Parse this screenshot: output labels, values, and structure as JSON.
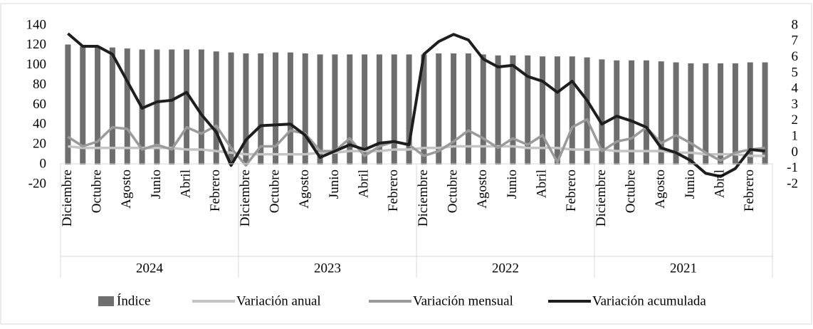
{
  "chart_data": {
    "type": "bar-line",
    "categories": [
      "Diciembre",
      null,
      "Octubre",
      null,
      "Agosto",
      null,
      "Junio",
      null,
      "Abril",
      null,
      "Febrero",
      null,
      "Diciembre",
      null,
      "Octubre",
      null,
      "Agosto",
      null,
      "Junio",
      null,
      "Abril",
      null,
      "Febrero",
      null,
      "Diciembre",
      null,
      "Octubre",
      null,
      "Agosto",
      null,
      "Junio",
      null,
      "Abril",
      null,
      "Febrero",
      null,
      "Diciembre",
      null,
      "Octubre",
      null,
      "Agosto",
      null,
      "Junio",
      null,
      "Abril",
      null,
      "Febrero",
      null
    ],
    "groups": [
      "2024",
      "2023",
      "2022",
      "2021"
    ],
    "series": [
      {
        "name": "Índice",
        "color": "#6e6e6e",
        "kind": "bar",
        "values": [
          121,
          119,
          119,
          118,
          117,
          116,
          116,
          116,
          116,
          116,
          114,
          113,
          112,
          112,
          113,
          113,
          112,
          111,
          111,
          111,
          111,
          111,
          111,
          111,
          111,
          112,
          112,
          112,
          111,
          110,
          110,
          110,
          109,
          109,
          109,
          108,
          106,
          105,
          105,
          105,
          104,
          103,
          102,
          102,
          102,
          102,
          103,
          103
        ]
      },
      {
        "name": "Variación anual",
        "color": "#c4c4c4",
        "kind": "line",
        "axis": "y2",
        "values": [
          0.4,
          0.3,
          0.3,
          0.3,
          0.3,
          0.3,
          0.3,
          0.3,
          0.2,
          0.2,
          0.1,
          0.0,
          -0.1,
          -0.1,
          -0.1,
          -0.1,
          -0.1,
          0.0,
          0.0,
          0.1,
          0.1,
          0.1,
          0.2,
          0.2,
          0.3,
          0.3,
          0.4,
          0.4,
          0.4,
          0.4,
          0.4,
          0.3,
          0.3,
          0.3,
          0.2,
          0.2,
          0.2,
          0.1,
          0.1,
          0.1,
          0.1,
          0.0,
          0.0,
          -0.1,
          -0.1,
          -0.1,
          -0.2,
          -0.2
        ]
      },
      {
        "name": "Variación mensual",
        "color": "#9a9a9a",
        "kind": "line",
        "axis": "y2",
        "values": [
          1.0,
          0.4,
          0.7,
          1.6,
          1.5,
          0.2,
          0.5,
          0.2,
          1.6,
          1.2,
          1.7,
          0.3,
          -0.8,
          0.4,
          0.4,
          1.4,
          1.2,
          0.1,
          0.1,
          0.9,
          -0.2,
          0.4,
          0.7,
          0.5,
          -0.2,
          0.1,
          0.7,
          1.4,
          0.9,
          0.3,
          0.9,
          0.5,
          1.1,
          -0.6,
          1.6,
          2.1,
          0.1,
          0.7,
          0.9,
          1.6,
          0.6,
          1.1,
          0.6,
          0.0,
          -0.5,
          0.0,
          0.2,
          0.3
        ]
      },
      {
        "name": "Variación acumulada",
        "color": "#1e1e1e",
        "kind": "line",
        "axis": "y2",
        "values": [
          7.5,
          6.7,
          6.7,
          6.2,
          4.5,
          2.8,
          3.2,
          3.3,
          3.8,
          2.4,
          1.3,
          -0.8,
          0.8,
          1.7,
          1.75,
          1.8,
          1.1,
          -0.3,
          0.1,
          0.5,
          0.2,
          0.6,
          0.7,
          0.5,
          6.2,
          7.0,
          7.45,
          7.1,
          5.9,
          5.4,
          5.5,
          4.8,
          4.5,
          3.8,
          4.5,
          3.3,
          1.8,
          2.3,
          2.0,
          1.6,
          0.3,
          0.0,
          -0.5,
          -1.3,
          -1.5,
          -1.0,
          0.2,
          0.1
        ]
      }
    ],
    "ylim": [
      -20,
      140
    ],
    "yticks": [
      -20,
      0,
      20,
      40,
      60,
      80,
      100,
      120,
      140
    ],
    "y2lim": [
      -2,
      8
    ],
    "y2ticks": [
      -2,
      -1,
      0,
      1,
      2,
      3,
      4,
      5,
      6,
      7,
      8
    ],
    "legend": "bottom"
  }
}
